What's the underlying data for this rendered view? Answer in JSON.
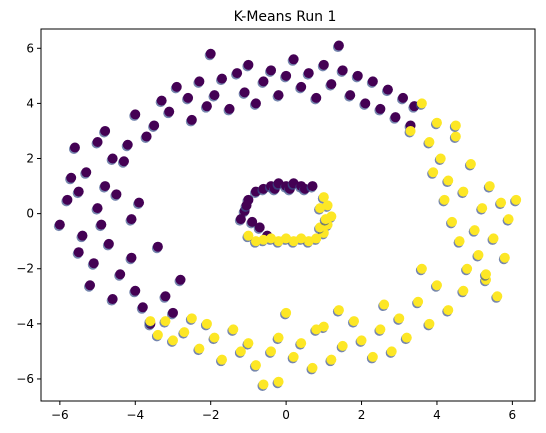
{
  "chart_data": {
    "type": "scatter",
    "title": "K-Means Run 1",
    "xlabel": "",
    "ylabel": "",
    "xlim": [
      -6.5,
      6.6
    ],
    "ylim": [
      -6.8,
      6.7
    ],
    "grid": false,
    "x_ticks": [
      -6,
      -4,
      -2,
      0,
      2,
      4,
      6
    ],
    "x_tick_labels": [
      "−6",
      "−4",
      "−2",
      "0",
      "2",
      "4",
      "6"
    ],
    "y_ticks": [
      -6,
      -4,
      -2,
      0,
      2,
      4,
      6
    ],
    "y_tick_labels": [
      "−6",
      "−4",
      "−2",
      "0",
      "2",
      "4",
      "6"
    ],
    "colors": {
      "cluster_0": "#440154",
      "cluster_1": "#fde725",
      "edge_shadow": "#3b528b"
    },
    "series": [
      {
        "cluster": 0,
        "points": [
          [
            -6.0,
            -0.4
          ],
          [
            -5.8,
            0.5
          ],
          [
            -5.7,
            1.3
          ],
          [
            -5.6,
            2.4
          ],
          [
            -5.5,
            0.8
          ],
          [
            -5.5,
            -1.4
          ],
          [
            -5.4,
            -0.8
          ],
          [
            -5.3,
            1.5
          ],
          [
            -5.2,
            -2.6
          ],
          [
            -5.1,
            -1.8
          ],
          [
            -5.0,
            2.6
          ],
          [
            -5.0,
            0.2
          ],
          [
            -4.9,
            -0.4
          ],
          [
            -4.8,
            1.0
          ],
          [
            -4.8,
            3.0
          ],
          [
            -4.7,
            -1.1
          ],
          [
            -4.6,
            2.0
          ],
          [
            -4.6,
            -3.1
          ],
          [
            -4.5,
            0.7
          ],
          [
            -4.4,
            -2.2
          ],
          [
            -4.3,
            1.9
          ],
          [
            -4.2,
            2.5
          ],
          [
            -4.1,
            -0.2
          ],
          [
            -4.1,
            -1.6
          ],
          [
            -4.0,
            3.6
          ],
          [
            -4.0,
            -2.8
          ],
          [
            -3.9,
            0.4
          ],
          [
            -3.8,
            -3.4
          ],
          [
            -3.7,
            2.8
          ],
          [
            -3.6,
            -4.0
          ],
          [
            -3.5,
            3.2
          ],
          [
            -3.4,
            -1.2
          ],
          [
            -3.3,
            4.1
          ],
          [
            -3.2,
            -3.0
          ],
          [
            -3.1,
            3.7
          ],
          [
            -3.0,
            -3.6
          ],
          [
            -2.9,
            4.6
          ],
          [
            -2.8,
            -2.4
          ],
          [
            -2.6,
            4.2
          ],
          [
            -2.5,
            3.4
          ],
          [
            -2.3,
            4.8
          ],
          [
            -2.1,
            3.9
          ],
          [
            -2.0,
            5.8
          ],
          [
            -1.9,
            4.3
          ],
          [
            -1.7,
            4.9
          ],
          [
            -1.5,
            3.8
          ],
          [
            -1.3,
            5.1
          ],
          [
            -1.1,
            4.4
          ],
          [
            -1.0,
            5.4
          ],
          [
            -0.8,
            4.0
          ],
          [
            -0.6,
            4.8
          ],
          [
            -0.4,
            5.2
          ],
          [
            -0.2,
            4.3
          ],
          [
            0.0,
            5.0
          ],
          [
            0.2,
            5.6
          ],
          [
            0.4,
            4.6
          ],
          [
            0.6,
            5.1
          ],
          [
            0.8,
            4.2
          ],
          [
            1.0,
            5.4
          ],
          [
            1.2,
            4.7
          ],
          [
            1.4,
            6.1
          ],
          [
            1.5,
            5.2
          ],
          [
            1.7,
            4.3
          ],
          [
            1.9,
            5.0
          ],
          [
            2.1,
            4.0
          ],
          [
            2.3,
            4.8
          ],
          [
            2.5,
            3.8
          ],
          [
            2.7,
            4.5
          ],
          [
            2.9,
            3.5
          ],
          [
            3.1,
            4.2
          ],
          [
            3.3,
            3.2
          ],
          [
            3.4,
            3.9
          ],
          [
            -1.1,
            0.1
          ],
          [
            -1.0,
            0.5
          ],
          [
            -0.9,
            -0.3
          ],
          [
            -0.8,
            0.8
          ],
          [
            -0.7,
            -0.5
          ],
          [
            -0.6,
            0.9
          ],
          [
            -0.5,
            -0.8
          ],
          [
            -0.4,
            1.0
          ],
          [
            -0.3,
            0.9
          ],
          [
            -0.2,
            1.1
          ],
          [
            0.0,
            1.0
          ],
          [
            0.1,
            0.9
          ],
          [
            0.2,
            1.1
          ],
          [
            0.4,
            1.0
          ],
          [
            0.5,
            0.9
          ],
          [
            0.7,
            1.0
          ],
          [
            -1.2,
            -0.2
          ],
          [
            -1.05,
            0.3
          ]
        ]
      },
      {
        "cluster": 1,
        "points": [
          [
            3.3,
            3.0
          ],
          [
            3.6,
            4.0
          ],
          [
            3.8,
            2.6
          ],
          [
            3.9,
            1.5
          ],
          [
            4.0,
            3.3
          ],
          [
            4.1,
            2.0
          ],
          [
            4.2,
            0.5
          ],
          [
            4.3,
            1.2
          ],
          [
            4.4,
            -0.3
          ],
          [
            4.5,
            2.8
          ],
          [
            4.6,
            -1.0
          ],
          [
            4.7,
            0.8
          ],
          [
            4.8,
            -2.0
          ],
          [
            4.9,
            1.8
          ],
          [
            5.0,
            -0.6
          ],
          [
            5.1,
            -1.5
          ],
          [
            5.2,
            0.2
          ],
          [
            5.3,
            -2.4
          ],
          [
            5.4,
            1.0
          ],
          [
            5.5,
            -0.9
          ],
          [
            5.6,
            -3.0
          ],
          [
            5.7,
            0.4
          ],
          [
            5.8,
            -1.6
          ],
          [
            5.9,
            -0.2
          ],
          [
            6.1,
            0.5
          ],
          [
            4.5,
            3.2
          ],
          [
            4.7,
            -2.8
          ],
          [
            4.3,
            -3.5
          ],
          [
            4.0,
            -2.6
          ],
          [
            3.8,
            -4.0
          ],
          [
            3.5,
            -3.2
          ],
          [
            3.2,
            -4.5
          ],
          [
            3.0,
            -3.8
          ],
          [
            2.8,
            -5.0
          ],
          [
            2.5,
            -4.2
          ],
          [
            2.3,
            -5.2
          ],
          [
            2.0,
            -4.6
          ],
          [
            1.8,
            -3.9
          ],
          [
            1.5,
            -4.8
          ],
          [
            1.2,
            -5.3
          ],
          [
            1.0,
            -4.1
          ],
          [
            0.7,
            -5.6
          ],
          [
            0.4,
            -4.7
          ],
          [
            0.2,
            -5.2
          ],
          [
            0.0,
            -3.6
          ],
          [
            -0.2,
            -4.5
          ],
          [
            -0.4,
            -5.0
          ],
          [
            -0.6,
            -6.2
          ],
          [
            -0.8,
            -5.5
          ],
          [
            -1.0,
            -4.7
          ],
          [
            -1.2,
            -5.0
          ],
          [
            -1.4,
            -4.2
          ],
          [
            -1.7,
            -5.3
          ],
          [
            -1.9,
            -4.5
          ],
          [
            -2.1,
            -4.0
          ],
          [
            -2.3,
            -4.9
          ],
          [
            -2.5,
            -3.8
          ],
          [
            -2.7,
            -4.3
          ],
          [
            -3.0,
            -4.6
          ],
          [
            -3.2,
            -3.9
          ],
          [
            -3.4,
            -4.4
          ],
          [
            -3.6,
            -3.9
          ],
          [
            -0.2,
            -6.1
          ],
          [
            0.8,
            -4.2
          ],
          [
            1.4,
            -3.5
          ],
          [
            2.6,
            -3.3
          ],
          [
            3.6,
            -2.0
          ],
          [
            5.3,
            -2.2
          ],
          [
            1.0,
            0.6
          ],
          [
            1.1,
            0.3
          ],
          [
            1.2,
            -0.1
          ],
          [
            1.1,
            -0.4
          ],
          [
            1.0,
            -0.7
          ],
          [
            0.9,
            -0.5
          ],
          [
            0.8,
            -0.9
          ],
          [
            0.6,
            -1.0
          ],
          [
            0.4,
            -0.9
          ],
          [
            0.2,
            -1.0
          ],
          [
            0.0,
            -0.9
          ],
          [
            -0.2,
            -1.0
          ],
          [
            -0.4,
            -0.9
          ],
          [
            -0.6,
            -0.95
          ],
          [
            -0.8,
            -1.0
          ],
          [
            -1.0,
            -0.8
          ],
          [
            0.9,
            0.2
          ],
          [
            1.05,
            -0.2
          ]
        ]
      }
    ]
  }
}
